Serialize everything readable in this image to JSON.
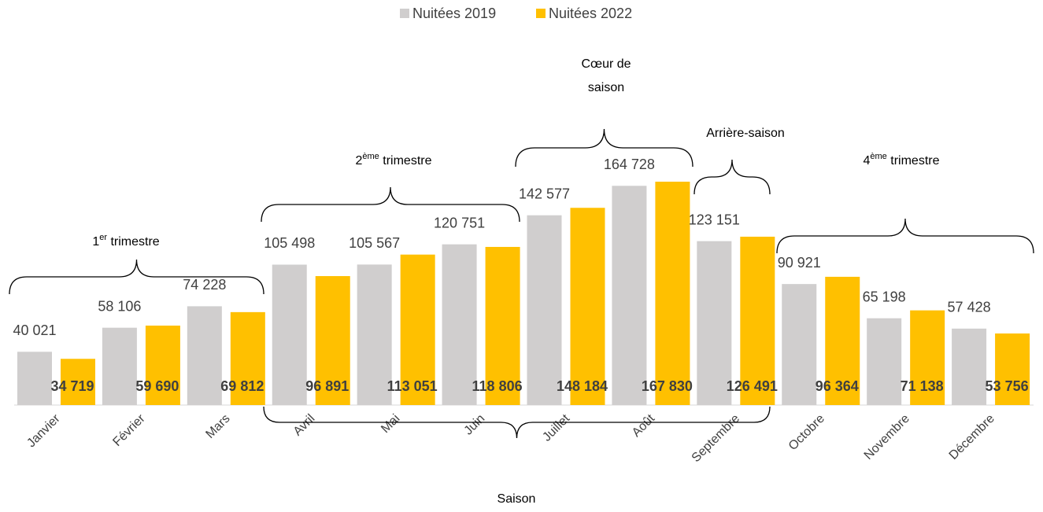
{
  "chart_data": {
    "type": "bar",
    "categories": [
      "Janvier",
      "Février",
      "Mars",
      "Avril",
      "Mai",
      "Juin",
      "Juillet",
      "Août",
      "Septembre",
      "Octobre",
      "Novembre",
      "Décembre"
    ],
    "series": [
      {
        "name": "Nuitées 2019",
        "color": "#d0cece",
        "values": [
          40021,
          58106,
          74228,
          105498,
          105567,
          120751,
          142577,
          164728,
          123151,
          90921,
          65198,
          57428
        ],
        "value_labels": [
          "40 021",
          "58 106",
          "74 228",
          "105 498",
          "105 567",
          "120 751",
          "142 577",
          "164 728",
          "123 151",
          "90 921",
          "65 198",
          "57 428"
        ]
      },
      {
        "name": "Nuitées 2022",
        "color": "#ffc000",
        "values": [
          34719,
          59690,
          69812,
          96891,
          113051,
          118806,
          148184,
          167830,
          126491,
          96364,
          71138,
          53756
        ],
        "value_labels": [
          "34 719",
          "59 690",
          "69 812",
          "96 891",
          "113 051",
          "118 806",
          "148 184",
          "167 830",
          "126 491",
          "96 364",
          "71 138",
          "53 756"
        ]
      }
    ],
    "annotations": [
      {
        "parts": [
          "1",
          "er",
          " trimestre"
        ]
      },
      {
        "parts": [
          "2",
          "ème",
          " trimestre"
        ]
      },
      {
        "lines": [
          "Cœur de",
          "saison"
        ]
      },
      {
        "lines": [
          "Arrière-saison"
        ]
      },
      {
        "parts": [
          "4",
          "ème",
          " trimestre"
        ]
      },
      {
        "lines": [
          "Saison"
        ]
      }
    ],
    "legend": "top"
  }
}
